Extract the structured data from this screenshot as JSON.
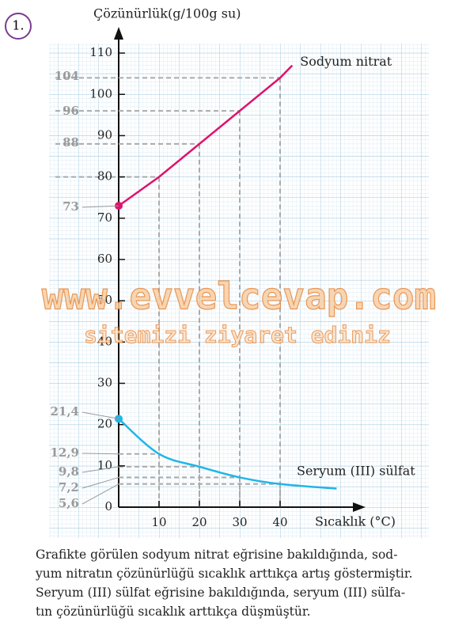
{
  "problem_number": "1.",
  "chart_data": {
    "type": "line",
    "y_label": "Çözünürlük(g/100g su)",
    "x_label": "Sıcaklık (°C)",
    "series": [
      {
        "name": "Sodyum nitrat",
        "color": "#e0126e",
        "x": [
          0,
          10,
          20,
          30,
          40,
          43
        ],
        "values": [
          73,
          80,
          88,
          96,
          104,
          107
        ],
        "value_labels": [
          "73",
          null,
          "88",
          "96",
          "104",
          null
        ]
      },
      {
        "name": "Seryum (III) sülfat",
        "color": "#1fb6e8",
        "x": [
          0,
          10,
          20,
          30,
          40,
          54
        ],
        "values": [
          21.4,
          12.9,
          9.8,
          7.2,
          5.6,
          4.5
        ],
        "value_labels": [
          "21,4",
          "12,9",
          "9,8",
          "7,2",
          "5,6",
          null
        ]
      }
    ],
    "xlim": [
      0,
      60
    ],
    "ylim": [
      0,
      115
    ],
    "xticks": [
      10,
      20,
      30,
      40
    ],
    "yticks": [
      0,
      10,
      20,
      30,
      40,
      50,
      60,
      70,
      80,
      90,
      100,
      110
    ],
    "grid": true
  },
  "watermark": {
    "site": "www.evvelcevap.com",
    "note": "sitemizi ziyaret ediniz"
  },
  "caption": [
    "Grafikte görülen sodyum nitrat eğrisine bakıldığında, sod-",
    "yum nitratın çözünürlüğü sıcaklık arttıkça artış göstermiştir.",
    "Seryum (III) sülfat eğrisine bakıldığında, seryum (III) sülfa-",
    "tın çözünürlüğü sıcaklık arttıkça düşmüştür."
  ]
}
